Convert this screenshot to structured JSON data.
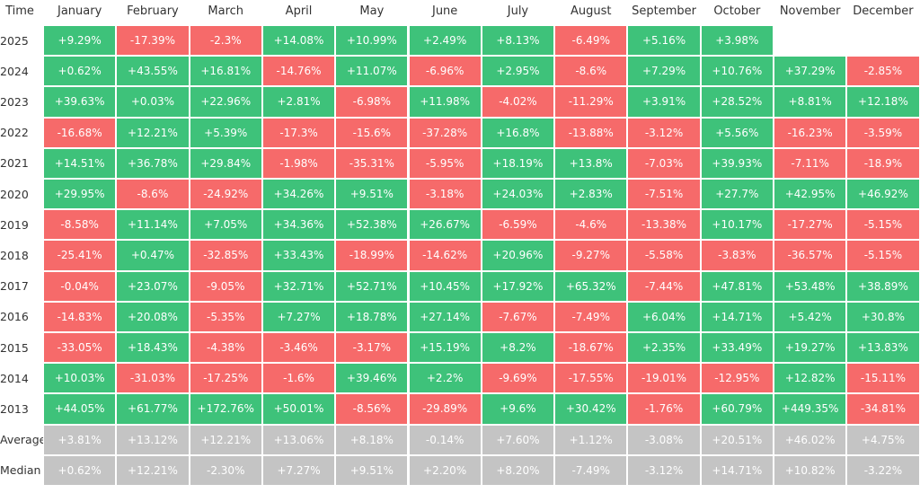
{
  "table": {
    "header": [
      "Time",
      "January",
      "February",
      "March",
      "April",
      "May",
      "June",
      "July",
      "August",
      "September",
      "October",
      "November",
      "December"
    ],
    "rows": [
      [
        "2025",
        "+9.29%",
        "-17.39%",
        "-2.3%",
        "+14.08%",
        "+10.99%",
        "+2.49%",
        "+8.13%",
        "-6.49%",
        "+5.16%",
        "+3.98%"
      ],
      [
        "2024",
        "+0.62%",
        "+43.55%",
        "+16.81%",
        "-14.76%",
        "+11.07%",
        "-6.96%",
        "+2.95%",
        "-8.6%",
        "+7.29%",
        "+10.76%",
        "+37.29%",
        "-2.85%"
      ],
      [
        "2023",
        "+39.63%",
        "+0.03%",
        "+22.96%",
        "+2.81%",
        "-6.98%",
        "+11.98%",
        "-4.02%",
        "-11.29%",
        "+3.91%",
        "+28.52%",
        "+8.81%",
        "+12.18%"
      ],
      [
        "2022",
        "-16.68%",
        "+12.21%",
        "+5.39%",
        "-17.3%",
        "-15.6%",
        "-37.28%",
        "+16.8%",
        "-13.88%",
        "-3.12%",
        "+5.56%",
        "-16.23%",
        "-3.59%"
      ],
      [
        "2021",
        "+14.51%",
        "+36.78%",
        "+29.84%",
        "-1.98%",
        "-35.31%",
        "-5.95%",
        "+18.19%",
        "+13.8%",
        "-7.03%",
        "+39.93%",
        "-7.11%",
        "-18.9%"
      ],
      [
        "2020",
        "+29.95%",
        "-8.6%",
        "-24.92%",
        "+34.26%",
        "+9.51%",
        "-3.18%",
        "+24.03%",
        "+2.83%",
        "-7.51%",
        "+27.7%",
        "+42.95%",
        "+46.92%"
      ],
      [
        "2019",
        "-8.58%",
        "+11.14%",
        "+7.05%",
        "+34.36%",
        "+52.38%",
        "+26.67%",
        "-6.59%",
        "-4.6%",
        "-13.38%",
        "+10.17%",
        "-17.27%",
        "-5.15%"
      ],
      [
        "2018",
        "-25.41%",
        "+0.47%",
        "-32.85%",
        "+33.43%",
        "-18.99%",
        "-14.62%",
        "+20.96%",
        "-9.27%",
        "-5.58%",
        "-3.83%",
        "-36.57%",
        "-5.15%"
      ],
      [
        "2017",
        "-0.04%",
        "+23.07%",
        "-9.05%",
        "+32.71%",
        "+52.71%",
        "+10.45%",
        "+17.92%",
        "+65.32%",
        "-7.44%",
        "+47.81%",
        "+53.48%",
        "+38.89%"
      ],
      [
        "2016",
        "-14.83%",
        "+20.08%",
        "-5.35%",
        "+7.27%",
        "+18.78%",
        "+27.14%",
        "-7.67%",
        "-7.49%",
        "+6.04%",
        "+14.71%",
        "+5.42%",
        "+30.8%"
      ],
      [
        "2015",
        "-33.05%",
        "+18.43%",
        "-4.38%",
        "-3.46%",
        "-3.17%",
        "+15.19%",
        "+8.2%",
        "-18.67%",
        "+2.35%",
        "+33.49%",
        "+19.27%",
        "+13.83%"
      ],
      [
        "2014",
        "+10.03%",
        "-31.03%",
        "-17.25%",
        "-1.6%",
        "+39.46%",
        "+2.2%",
        "-9.69%",
        "-17.55%",
        "-19.01%",
        "-12.95%",
        "+12.82%",
        "-15.11%"
      ],
      [
        "2013",
        "+44.05%",
        "+61.77%",
        "+172.76%",
        "+50.01%",
        "-8.56%",
        "-29.89%",
        "+9.6%",
        "+30.42%",
        "-1.76%",
        "+60.79%",
        "+449.35%",
        "-34.81%"
      ]
    ],
    "summary_rows": [
      [
        "Average",
        "+3.81%",
        "+13.12%",
        "+12.21%",
        "+13.06%",
        "+8.18%",
        "-0.14%",
        "+7.60%",
        "+1.12%",
        "-3.08%",
        "+20.51%",
        "+46.02%",
        "+4.75%"
      ],
      [
        "Median",
        "+0.62%",
        "+12.21%",
        "-2.30%",
        "+7.27%",
        "+9.51%",
        "+2.20%",
        "+8.20%",
        "-7.49%",
        "-3.12%",
        "+14.71%",
        "+10.82%",
        "-3.22%"
      ]
    ]
  }
}
